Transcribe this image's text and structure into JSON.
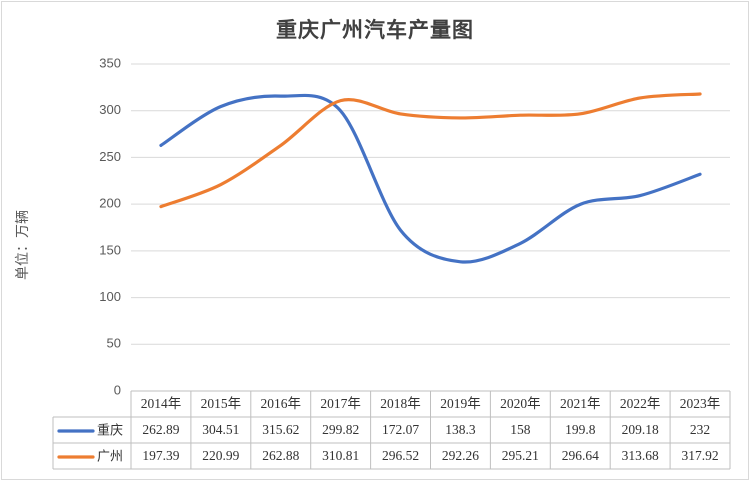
{
  "chart_data": {
    "type": "line",
    "title": "重庆广州汽车产量图",
    "ylabel": "单位：万辆",
    "xlabel": "",
    "categories": [
      "2014年",
      "2015年",
      "2016年",
      "2017年",
      "2018年",
      "2019年",
      "2020年",
      "2021年",
      "2022年",
      "2023年"
    ],
    "series": [
      {
        "name": "重庆",
        "color": "#4472c4",
        "values": [
          262.89,
          304.51,
          315.62,
          299.82,
          172.07,
          138.3,
          158,
          199.8,
          209.18,
          232
        ]
      },
      {
        "name": "广州",
        "color": "#ed7d31",
        "values": [
          197.39,
          220.99,
          262.88,
          310.81,
          296.52,
          292.26,
          295.21,
          296.64,
          313.68,
          317.92
        ]
      }
    ],
    "ylim": [
      0,
      350
    ],
    "yticks": [
      0,
      50,
      100,
      150,
      200,
      250,
      300,
      350
    ],
    "grid": true,
    "legend": "data-table-left",
    "data_table": true
  }
}
